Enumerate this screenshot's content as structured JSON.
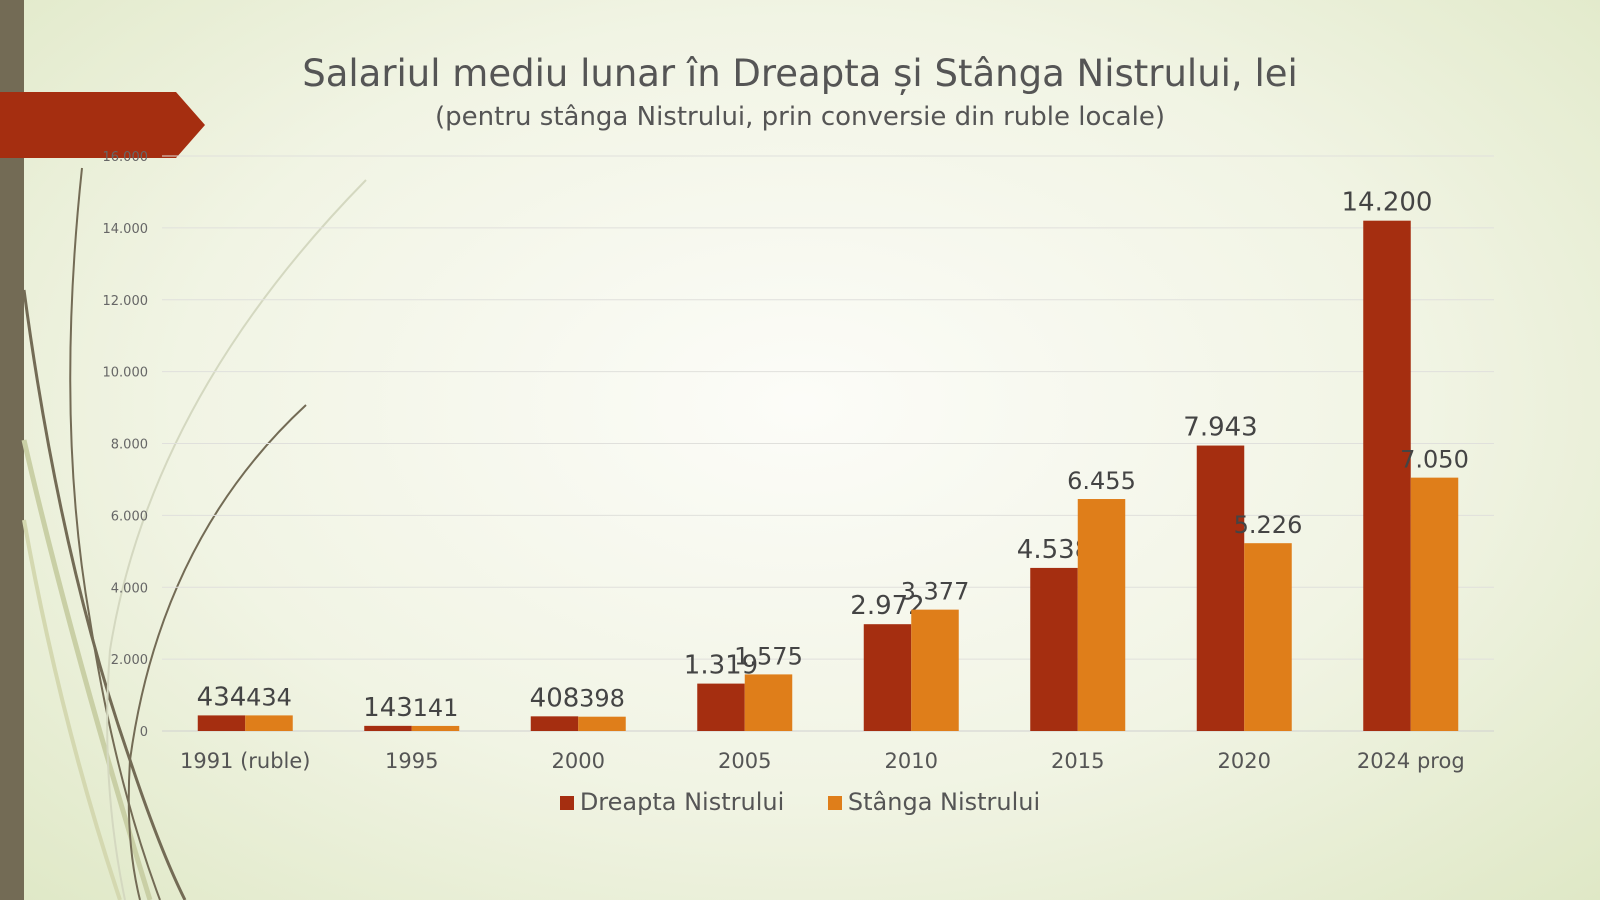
{
  "chart_data": {
    "type": "bar",
    "title": "Salariul mediu lunar în Dreapta și Stânga Nistrului, lei",
    "subtitle": "(pentru stânga Nistrului, prin conversie din ruble locale)",
    "categories": [
      "1991 (ruble)",
      "1995",
      "2000",
      "2005",
      "2010",
      "2015",
      "2020",
      "2024 prog"
    ],
    "series": [
      {
        "name": "Dreapta Nistrului",
        "color": "#a52e10",
        "values": [
          434,
          143,
          408,
          1319,
          2972,
          4538,
          7943,
          14200
        ],
        "labels": [
          "434",
          "143",
          "408",
          "1.319",
          "2.972",
          "4.538",
          "7.943",
          "14.200"
        ]
      },
      {
        "name": "Stânga Nistrului",
        "color": "#df7e1a",
        "values": [
          434,
          141,
          398,
          1575,
          3377,
          6455,
          5226,
          7050
        ],
        "labels": [
          "434",
          "141",
          "398",
          "1.575",
          "3.377",
          "6.455",
          "5.226",
          "7.050"
        ]
      }
    ],
    "ylim": [
      0,
      16000
    ],
    "yticks": [
      0,
      2000,
      4000,
      6000,
      8000,
      10000,
      12000,
      14000,
      16000
    ],
    "ytick_labels": [
      "0",
      "2.000",
      "4.000",
      "6.000",
      "8.000",
      "10.000",
      "12.000",
      "14.000",
      "16.000"
    ],
    "grid": true,
    "legend_position": "bottom",
    "xlabel": "",
    "ylabel": ""
  }
}
